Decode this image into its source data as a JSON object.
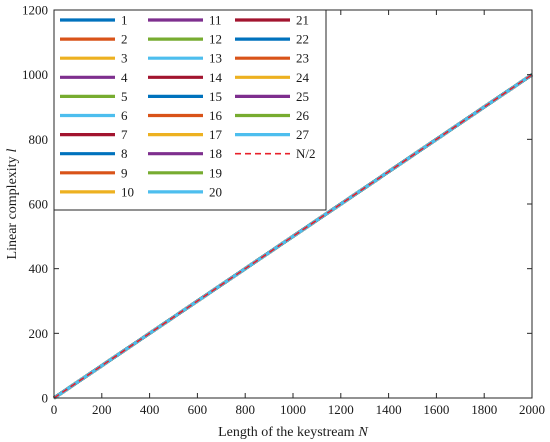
{
  "chart_data": {
    "type": "line",
    "xlabel": "Length of the keystream",
    "xlabel_symbol": "N",
    "ylabel": "Linear complexity",
    "ylabel_symbol": "l",
    "xlim": [
      0,
      2000
    ],
    "ylim": [
      0,
      1200
    ],
    "x_ticks": [
      "0",
      "200",
      "400",
      "600",
      "800",
      "1000",
      "1200",
      "1400",
      "1600",
      "1800",
      "2000"
    ],
    "y_ticks": [
      "0",
      "200",
      "400",
      "600",
      "800",
      "1000",
      "1200"
    ],
    "grid": false,
    "legend_placement": "top-left",
    "series": [
      {
        "name": "1",
        "color": "#0072BD",
        "x": [
          0,
          2000
        ],
        "y": [
          0,
          1000
        ]
      },
      {
        "name": "2",
        "color": "#D95319",
        "x": [
          0,
          2000
        ],
        "y": [
          0,
          1000
        ]
      },
      {
        "name": "3",
        "color": "#EDB120",
        "x": [
          0,
          2000
        ],
        "y": [
          0,
          1000
        ]
      },
      {
        "name": "4",
        "color": "#7E2F8E",
        "x": [
          0,
          2000
        ],
        "y": [
          0,
          1000
        ]
      },
      {
        "name": "5",
        "color": "#77AC30",
        "x": [
          0,
          2000
        ],
        "y": [
          0,
          1000
        ]
      },
      {
        "name": "6",
        "color": "#4DBEEE",
        "x": [
          0,
          2000
        ],
        "y": [
          0,
          1000
        ]
      },
      {
        "name": "7",
        "color": "#A2142F",
        "x": [
          0,
          2000
        ],
        "y": [
          0,
          1000
        ]
      },
      {
        "name": "8",
        "color": "#0072BD",
        "x": [
          0,
          2000
        ],
        "y": [
          0,
          1000
        ]
      },
      {
        "name": "9",
        "color": "#D95319",
        "x": [
          0,
          2000
        ],
        "y": [
          0,
          1000
        ]
      },
      {
        "name": "10",
        "color": "#EDB120",
        "x": [
          0,
          2000
        ],
        "y": [
          0,
          1000
        ]
      },
      {
        "name": "11",
        "color": "#7E2F8E",
        "x": [
          0,
          2000
        ],
        "y": [
          0,
          1000
        ]
      },
      {
        "name": "12",
        "color": "#77AC30",
        "x": [
          0,
          2000
        ],
        "y": [
          0,
          1000
        ]
      },
      {
        "name": "13",
        "color": "#4DBEEE",
        "x": [
          0,
          2000
        ],
        "y": [
          0,
          1000
        ]
      },
      {
        "name": "14",
        "color": "#A2142F",
        "x": [
          0,
          2000
        ],
        "y": [
          0,
          1000
        ]
      },
      {
        "name": "15",
        "color": "#0072BD",
        "x": [
          0,
          2000
        ],
        "y": [
          0,
          1000
        ]
      },
      {
        "name": "16",
        "color": "#D95319",
        "x": [
          0,
          2000
        ],
        "y": [
          0,
          1000
        ]
      },
      {
        "name": "17",
        "color": "#EDB120",
        "x": [
          0,
          2000
        ],
        "y": [
          0,
          1000
        ]
      },
      {
        "name": "18",
        "color": "#7E2F8E",
        "x": [
          0,
          2000
        ],
        "y": [
          0,
          1000
        ]
      },
      {
        "name": "19",
        "color": "#77AC30",
        "x": [
          0,
          2000
        ],
        "y": [
          0,
          1000
        ]
      },
      {
        "name": "20",
        "color": "#4DBEEE",
        "x": [
          0,
          2000
        ],
        "y": [
          0,
          1000
        ]
      },
      {
        "name": "21",
        "color": "#A2142F",
        "x": [
          0,
          2000
        ],
        "y": [
          0,
          1000
        ]
      },
      {
        "name": "22",
        "color": "#0072BD",
        "x": [
          0,
          2000
        ],
        "y": [
          0,
          1000
        ]
      },
      {
        "name": "23",
        "color": "#D95319",
        "x": [
          0,
          2000
        ],
        "y": [
          0,
          1000
        ]
      },
      {
        "name": "24",
        "color": "#EDB120",
        "x": [
          0,
          2000
        ],
        "y": [
          0,
          1000
        ]
      },
      {
        "name": "25",
        "color": "#7E2F8E",
        "x": [
          0,
          2000
        ],
        "y": [
          0,
          1000
        ]
      },
      {
        "name": "26",
        "color": "#77AC30",
        "x": [
          0,
          2000
        ],
        "y": [
          0,
          1000
        ]
      },
      {
        "name": "27",
        "color": "#4DBEEE",
        "x": [
          0,
          2000
        ],
        "y": [
          0,
          1000
        ]
      },
      {
        "name": "N/2",
        "color": "#E8202A",
        "dashed": true,
        "x": [
          0,
          2000
        ],
        "y": [
          0,
          1000
        ]
      }
    ]
  }
}
